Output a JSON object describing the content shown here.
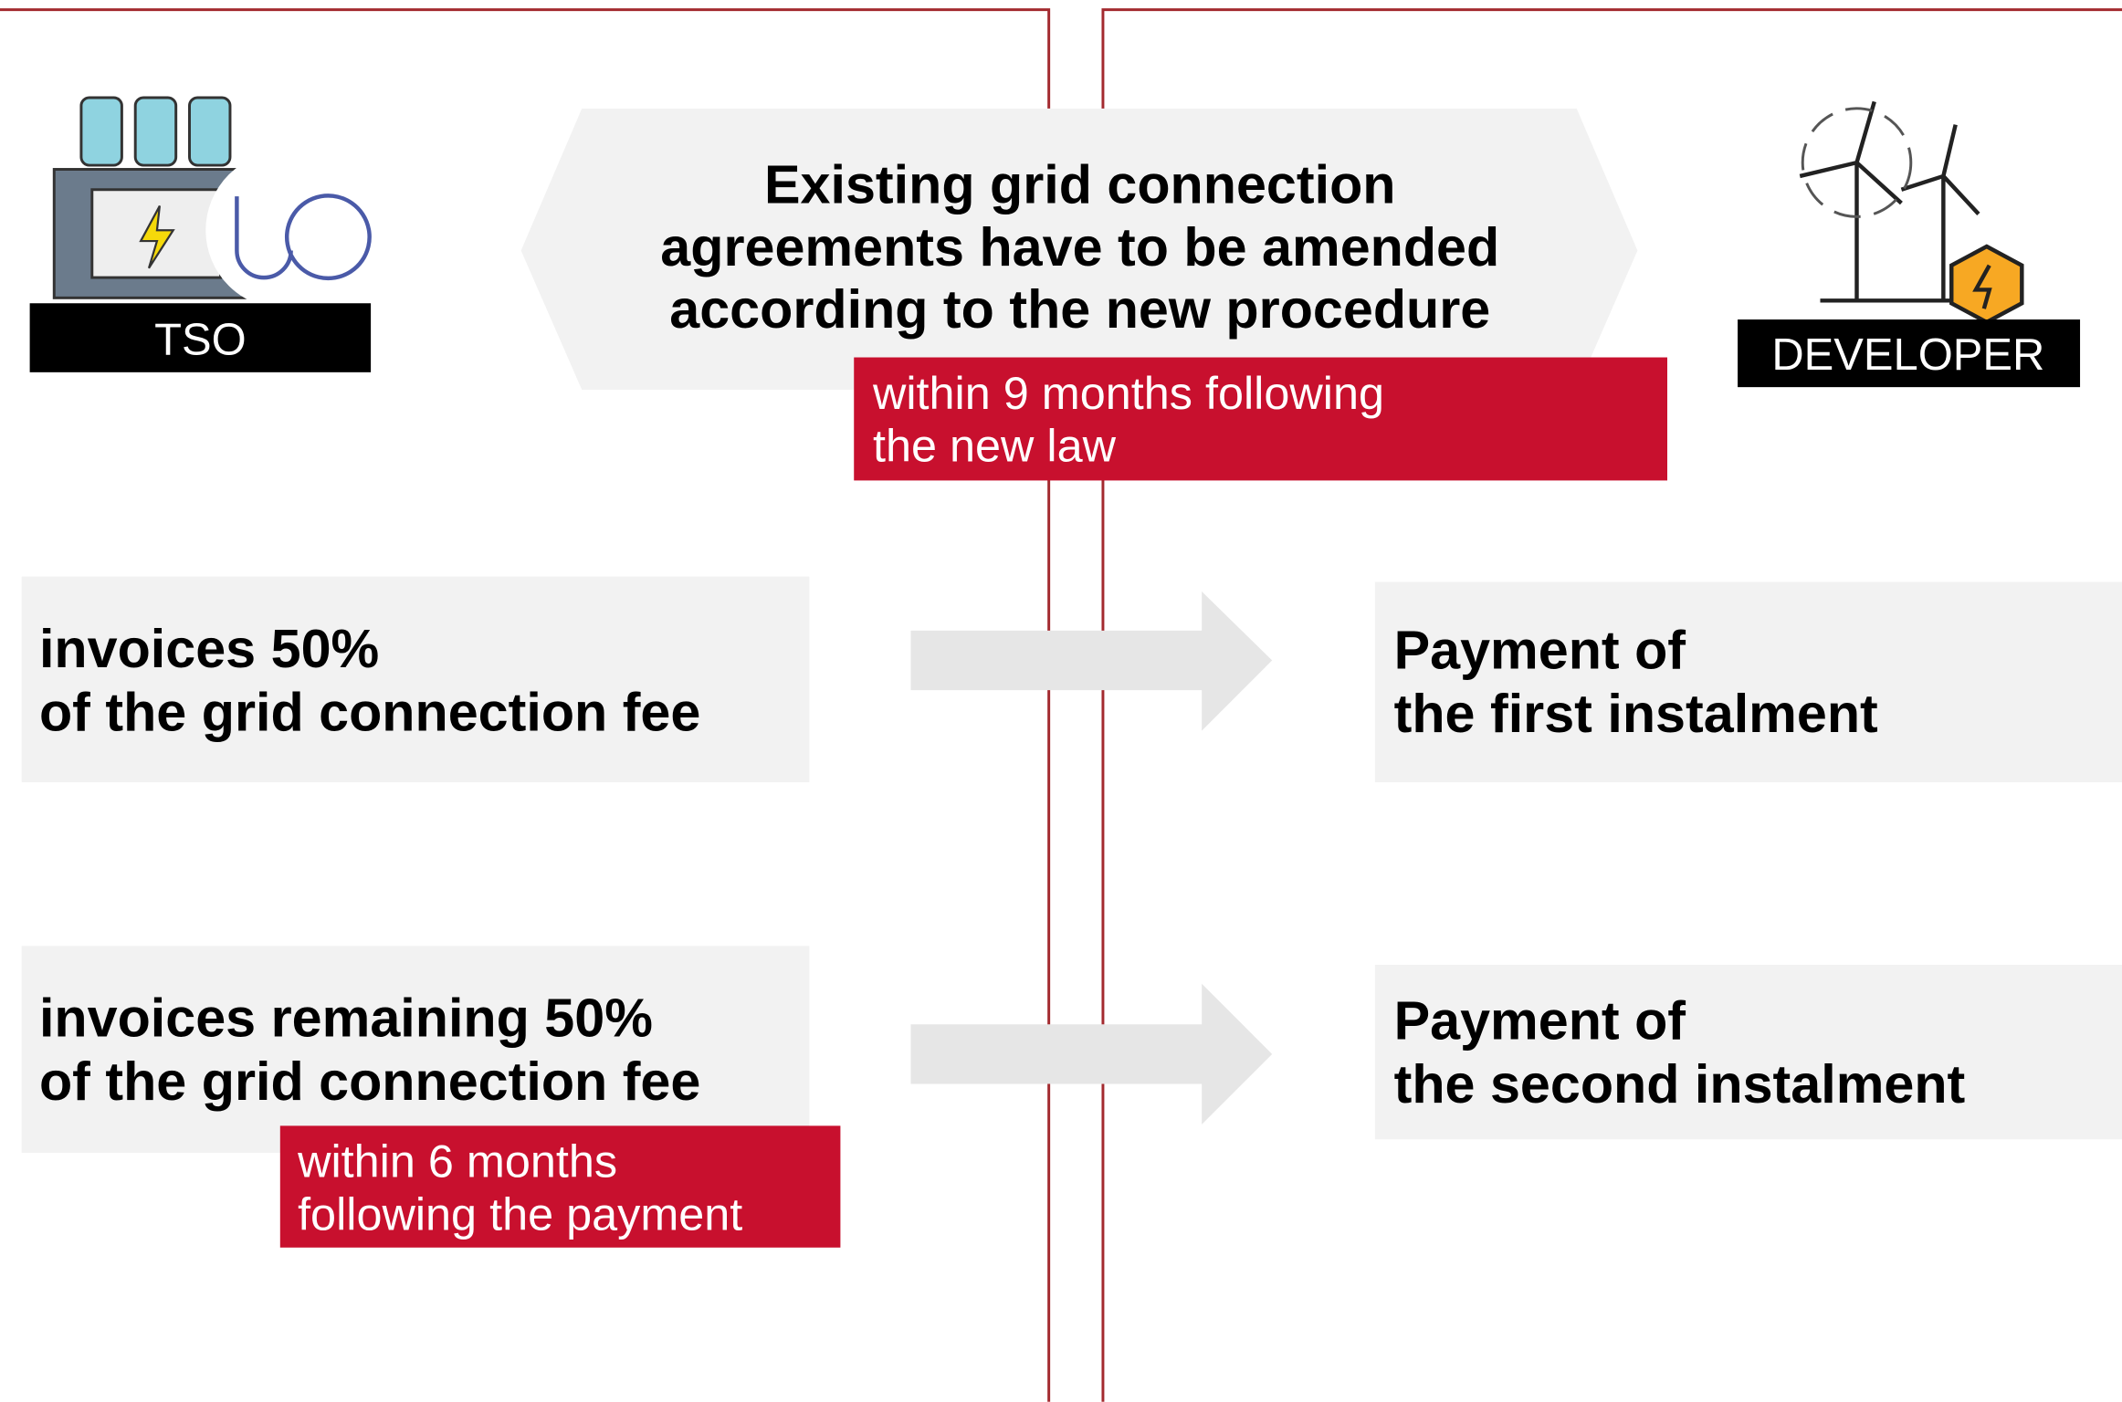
{
  "tso_label": "TSO",
  "developer_label": "DEVELOPER",
  "header": {
    "lines": [
      "Existing grid connection",
      "agreements have to be amended",
      "according to the new procedure"
    ]
  },
  "header_note": {
    "lines": [
      "within 9 months following",
      "the new law"
    ]
  },
  "rows": [
    {
      "left": [
        "invoices 50%",
        "of the grid connection fee"
      ],
      "right": [
        "Payment of",
        "the first instalment"
      ]
    },
    {
      "left": [
        "invoices remaining 50%",
        "of the grid connection fee"
      ],
      "right": [
        "Payment of",
        "the second instalment"
      ],
      "note": [
        "within 6 months",
        "following the payment"
      ]
    }
  ]
}
